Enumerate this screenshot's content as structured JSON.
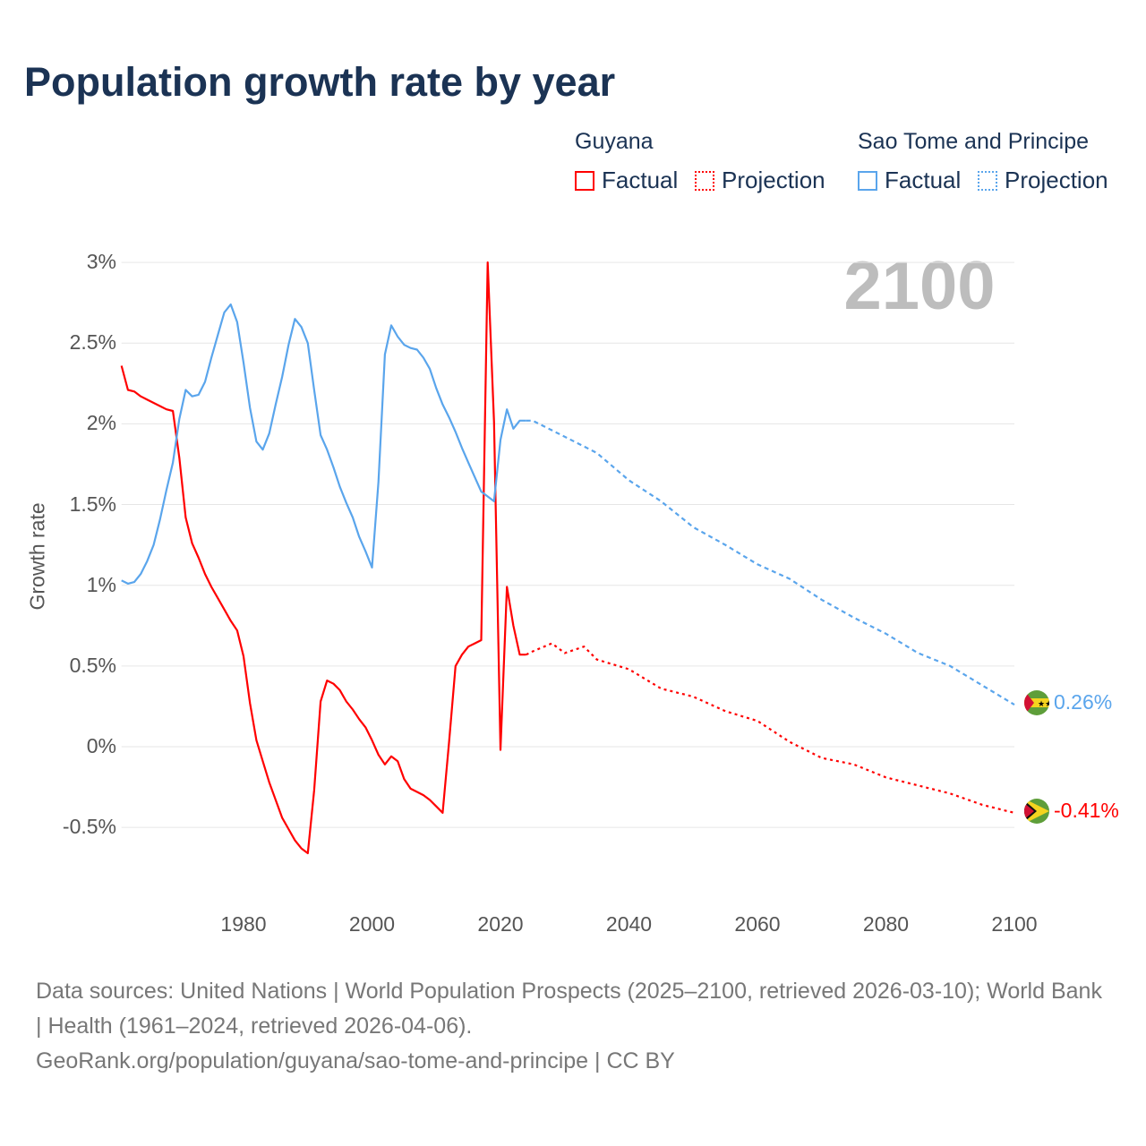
{
  "title": "Population growth rate by year",
  "legend": {
    "groups": [
      {
        "name": "Guyana",
        "factual": "Factual",
        "projection": "Projection",
        "color": "#ff0000"
      },
      {
        "name": "Sao Tome and Principe",
        "factual": "Factual",
        "projection": "Projection",
        "color": "#5aa5ec"
      }
    ]
  },
  "year_display": "2100",
  "footer": {
    "line1": "Data sources: United Nations | World Population Prospects (2025–2100, retrieved 2026-03-10); World Bank | Health (1961–2024, retrieved 2026-04-06).",
    "line2": "GeoRank.org/population/guyana/sao-tome-and-principe | CC BY"
  },
  "chart_data": {
    "type": "line",
    "title": "Population growth rate by year",
    "xlabel": "",
    "ylabel": "Growth rate",
    "xlim": [
      1961,
      2100
    ],
    "ylim": [
      -0.75,
      3.0
    ],
    "x_ticks": [
      1980,
      2000,
      2020,
      2040,
      2060,
      2080,
      2100
    ],
    "x_tick_labels": [
      "1980",
      "2000",
      "2020",
      "2040",
      "2060",
      "2080",
      "2100"
    ],
    "y_ticks": [
      3,
      2.5,
      2,
      1.5,
      1,
      0.5,
      0,
      -0.5
    ],
    "y_tick_labels": [
      "3%",
      "2.5%",
      "2%",
      "1.5%",
      "1%",
      "0.5%",
      "0%",
      "-0.5%"
    ],
    "grid": true,
    "legend_position": "top-right",
    "series": [
      {
        "name": "Guyana",
        "color": "#ff0000",
        "end_label": "-0.41%",
        "factual": {
          "x": [
            1961,
            1962,
            1963,
            1964,
            1965,
            1966,
            1967,
            1968,
            1969,
            1970,
            1971,
            1972,
            1973,
            1974,
            1975,
            1976,
            1977,
            1978,
            1979,
            1980,
            1981,
            1982,
            1983,
            1984,
            1985,
            1986,
            1987,
            1988,
            1989,
            1990,
            1991,
            1992,
            1993,
            1994,
            1995,
            1996,
            1997,
            1998,
            1999,
            2000,
            2001,
            2002,
            2003,
            2004,
            2005,
            2006,
            2007,
            2008,
            2009,
            2010,
            2011,
            2012,
            2013,
            2014,
            2015,
            2016,
            2017,
            2018,
            2019,
            2020,
            2021,
            2022,
            2023,
            2024
          ],
          "y": [
            2.36,
            2.21,
            2.2,
            2.17,
            2.15,
            2.13,
            2.11,
            2.09,
            2.08,
            1.79,
            1.42,
            1.26,
            1.17,
            1.07,
            0.99,
            0.92,
            0.85,
            0.78,
            0.72,
            0.56,
            0.27,
            0.04,
            -0.09,
            -0.22,
            -0.33,
            -0.44,
            -0.51,
            -0.58,
            -0.63,
            -0.66,
            -0.27,
            0.28,
            0.41,
            0.39,
            0.35,
            0.28,
            0.23,
            0.17,
            0.12,
            0.04,
            -0.05,
            -0.11,
            -0.06,
            -0.09,
            -0.2,
            -0.26,
            -0.28,
            -0.3,
            -0.33,
            -0.37,
            -0.41,
            0.03,
            0.5,
            0.57,
            0.62,
            0.64,
            0.66,
            3.0,
            2.01,
            -0.02,
            0.99,
            0.75,
            0.57,
            0.57
          ]
        },
        "projection": {
          "x": [
            2024,
            2025,
            2028,
            2030,
            2033,
            2035,
            2040,
            2045,
            2050,
            2055,
            2060,
            2065,
            2070,
            2075,
            2080,
            2085,
            2090,
            2095,
            2100
          ],
          "y": [
            0.57,
            0.59,
            0.64,
            0.58,
            0.62,
            0.54,
            0.48,
            0.36,
            0.31,
            0.22,
            0.16,
            0.03,
            -0.07,
            -0.11,
            -0.19,
            -0.24,
            -0.29,
            -0.36,
            -0.41
          ]
        }
      },
      {
        "name": "Sao Tome and Principe",
        "color": "#5aa5ec",
        "end_label": "0.26%",
        "factual": {
          "x": [
            1961,
            1962,
            1963,
            1964,
            1965,
            1966,
            1967,
            1968,
            1969,
            1970,
            1971,
            1972,
            1973,
            1974,
            1975,
            1976,
            1977,
            1978,
            1979,
            1980,
            1981,
            1982,
            1983,
            1984,
            1985,
            1986,
            1987,
            1988,
            1989,
            1990,
            1991,
            1992,
            1993,
            1994,
            1995,
            1996,
            1997,
            1998,
            1999,
            2000,
            2001,
            2002,
            2003,
            2004,
            2005,
            2006,
            2007,
            2008,
            2009,
            2010,
            2011,
            2012,
            2013,
            2014,
            2015,
            2016,
            2017,
            2018,
            2019,
            2020,
            2021,
            2022,
            2023,
            2024
          ],
          "y": [
            1.03,
            1.01,
            1.02,
            1.07,
            1.15,
            1.25,
            1.41,
            1.59,
            1.76,
            2.03,
            2.21,
            2.17,
            2.18,
            2.26,
            2.41,
            2.55,
            2.69,
            2.74,
            2.63,
            2.38,
            2.1,
            1.89,
            1.84,
            1.94,
            2.12,
            2.29,
            2.49,
            2.65,
            2.6,
            2.5,
            2.21,
            1.93,
            1.84,
            1.73,
            1.61,
            1.51,
            1.42,
            1.3,
            1.21,
            1.11,
            1.64,
            2.43,
            2.61,
            2.54,
            2.49,
            2.47,
            2.46,
            2.41,
            2.34,
            2.22,
            2.12,
            2.04,
            1.95,
            1.85,
            1.76,
            1.67,
            1.58,
            1.55,
            1.52,
            1.9,
            2.09,
            1.97,
            2.02,
            2.02
          ]
        },
        "projection": {
          "x": [
            2024,
            2025,
            2030,
            2035,
            2040,
            2045,
            2050,
            2055,
            2060,
            2065,
            2070,
            2075,
            2080,
            2085,
            2090,
            2095,
            2100
          ],
          "y": [
            2.02,
            2.02,
            1.92,
            1.82,
            1.65,
            1.52,
            1.36,
            1.25,
            1.13,
            1.04,
            0.91,
            0.8,
            0.7,
            0.58,
            0.5,
            0.38,
            0.26
          ]
        }
      }
    ]
  }
}
